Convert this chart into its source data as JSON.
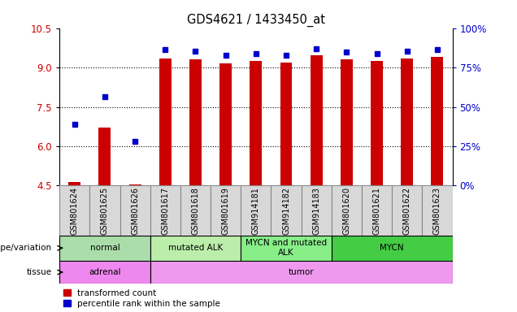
{
  "title": "GDS4621 / 1433450_at",
  "samples": [
    "GSM801624",
    "GSM801625",
    "GSM801626",
    "GSM801617",
    "GSM801618",
    "GSM801619",
    "GSM914181",
    "GSM914182",
    "GSM914183",
    "GSM801620",
    "GSM801621",
    "GSM801622",
    "GSM801623"
  ],
  "red_values": [
    4.65,
    6.7,
    4.55,
    9.35,
    9.3,
    9.15,
    9.25,
    9.2,
    9.45,
    9.3,
    9.25,
    9.35,
    9.4
  ],
  "blue_values": [
    6.85,
    7.9,
    6.2,
    9.68,
    9.62,
    9.45,
    9.52,
    9.48,
    9.72,
    9.58,
    9.52,
    9.62,
    9.68
  ],
  "ymin": 4.5,
  "ymax": 10.5,
  "yticks": [
    4.5,
    6.0,
    7.5,
    9.0,
    10.5
  ],
  "right_yticks": [
    0,
    25,
    50,
    75,
    100
  ],
  "right_ytick_labels": [
    "0%",
    "25%",
    "50%",
    "75%",
    "100%"
  ],
  "genotype_groups": [
    {
      "label": "normal",
      "start": 0,
      "end": 3,
      "color": "#aaddaa"
    },
    {
      "label": "mutated ALK",
      "start": 3,
      "end": 6,
      "color": "#bbeeaa"
    },
    {
      "label": "MYCN and mutated\nALK",
      "start": 6,
      "end": 9,
      "color": "#88ee88"
    },
    {
      "label": "MYCN",
      "start": 9,
      "end": 13,
      "color": "#44cc44"
    }
  ],
  "tissue_groups": [
    {
      "label": "adrenal",
      "start": 0,
      "end": 3,
      "color": "#ee88ee"
    },
    {
      "label": "tumor",
      "start": 3,
      "end": 13,
      "color": "#ee99ee"
    }
  ],
  "red_color": "#cc0000",
  "blue_color": "#0000cc",
  "legend_red": "transformed count",
  "legend_blue": "percentile rank within the sample",
  "cell_bg": "#d8d8d8"
}
